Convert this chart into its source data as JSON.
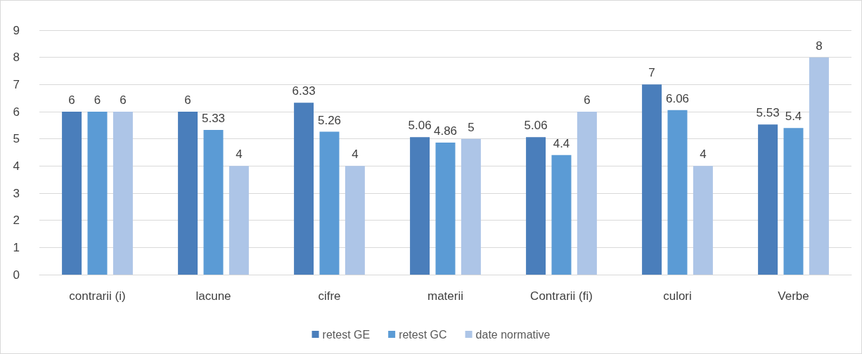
{
  "chart_data": {
    "type": "bar",
    "categories": [
      "contrarii (i)",
      "lacune",
      "cifre",
      "materii",
      "Contrarii (fi)",
      "culori",
      "Verbe"
    ],
    "series": [
      {
        "name": "retest GE",
        "color": "#4a7ebb",
        "values": [
          6,
          6,
          6.33,
          5.06,
          5.06,
          7,
          5.53
        ]
      },
      {
        "name": "retest GC",
        "color": "#5b9bd5",
        "values": [
          6,
          5.33,
          5.26,
          4.86,
          4.4,
          6.06,
          5.4
        ]
      },
      {
        "name": "date normative",
        "color": "#adc5e7",
        "values": [
          6,
          4,
          4,
          5,
          6,
          4,
          8
        ]
      }
    ],
    "ylim": [
      0,
      9
    ],
    "yticks": [
      0,
      1,
      2,
      3,
      4,
      5,
      6,
      7,
      8,
      9
    ],
    "grid": "y",
    "legend": "bottom",
    "data_labels": true
  }
}
